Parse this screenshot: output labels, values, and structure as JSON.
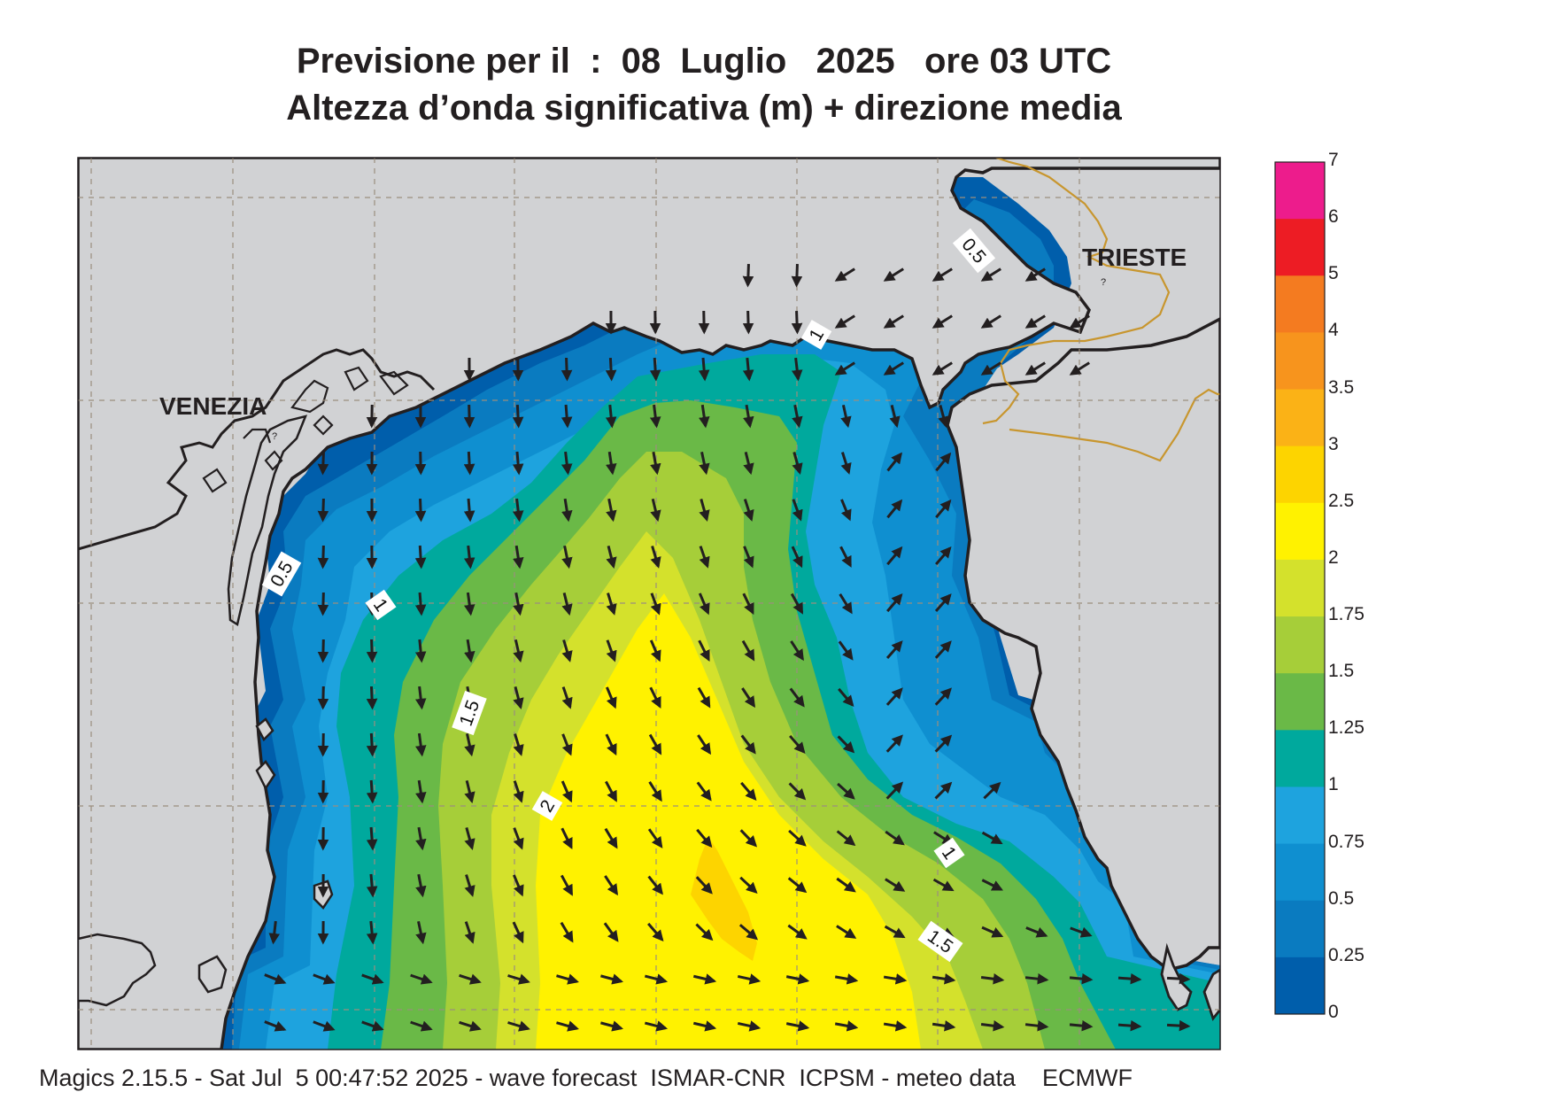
{
  "title": {
    "line1": "Previsione per il  :  08  Luglio   2025   ore 03 UTC",
    "line2": "Altezza d’onda significativa (m) + direzione media"
  },
  "cities": {
    "venezia": "VENEZIA",
    "trieste": "TRIESTE"
  },
  "contour_labels": [
    "0.5",
    "0.5",
    "1",
    "1",
    "1",
    "1.5",
    "1.5",
    "2"
  ],
  "colorbar": {
    "labels": [
      "7",
      "6",
      "5",
      "4",
      "3.5",
      "3",
      "2.5",
      "2",
      "1.75",
      "1.5",
      "1.25",
      "1",
      "0.75",
      "0.5",
      "0.25",
      "0"
    ],
    "colors": [
      "#ed1c8c",
      "#ed1c24",
      "#f47b20",
      "#f7941d",
      "#fbb216",
      "#fdd400",
      "#fff200",
      "#d4e12c",
      "#a6ce39",
      "#6ab947",
      "#00a99d",
      "#1ea3de",
      "#0f8fd0",
      "#0a7bc0",
      "#005eab"
    ]
  },
  "colors": {
    "land": "#d1d2d4",
    "coast": "#231f20",
    "border": "#c8962e",
    "arrow": "#231f20",
    "grid": "#9b8e7e"
  },
  "footer": "Magics 2.15.5 - Sat Jul  5 00:47:52 2025 - wave forecast  ISMAR-CNR  ICPSM - meteo data    ECMWF"
}
